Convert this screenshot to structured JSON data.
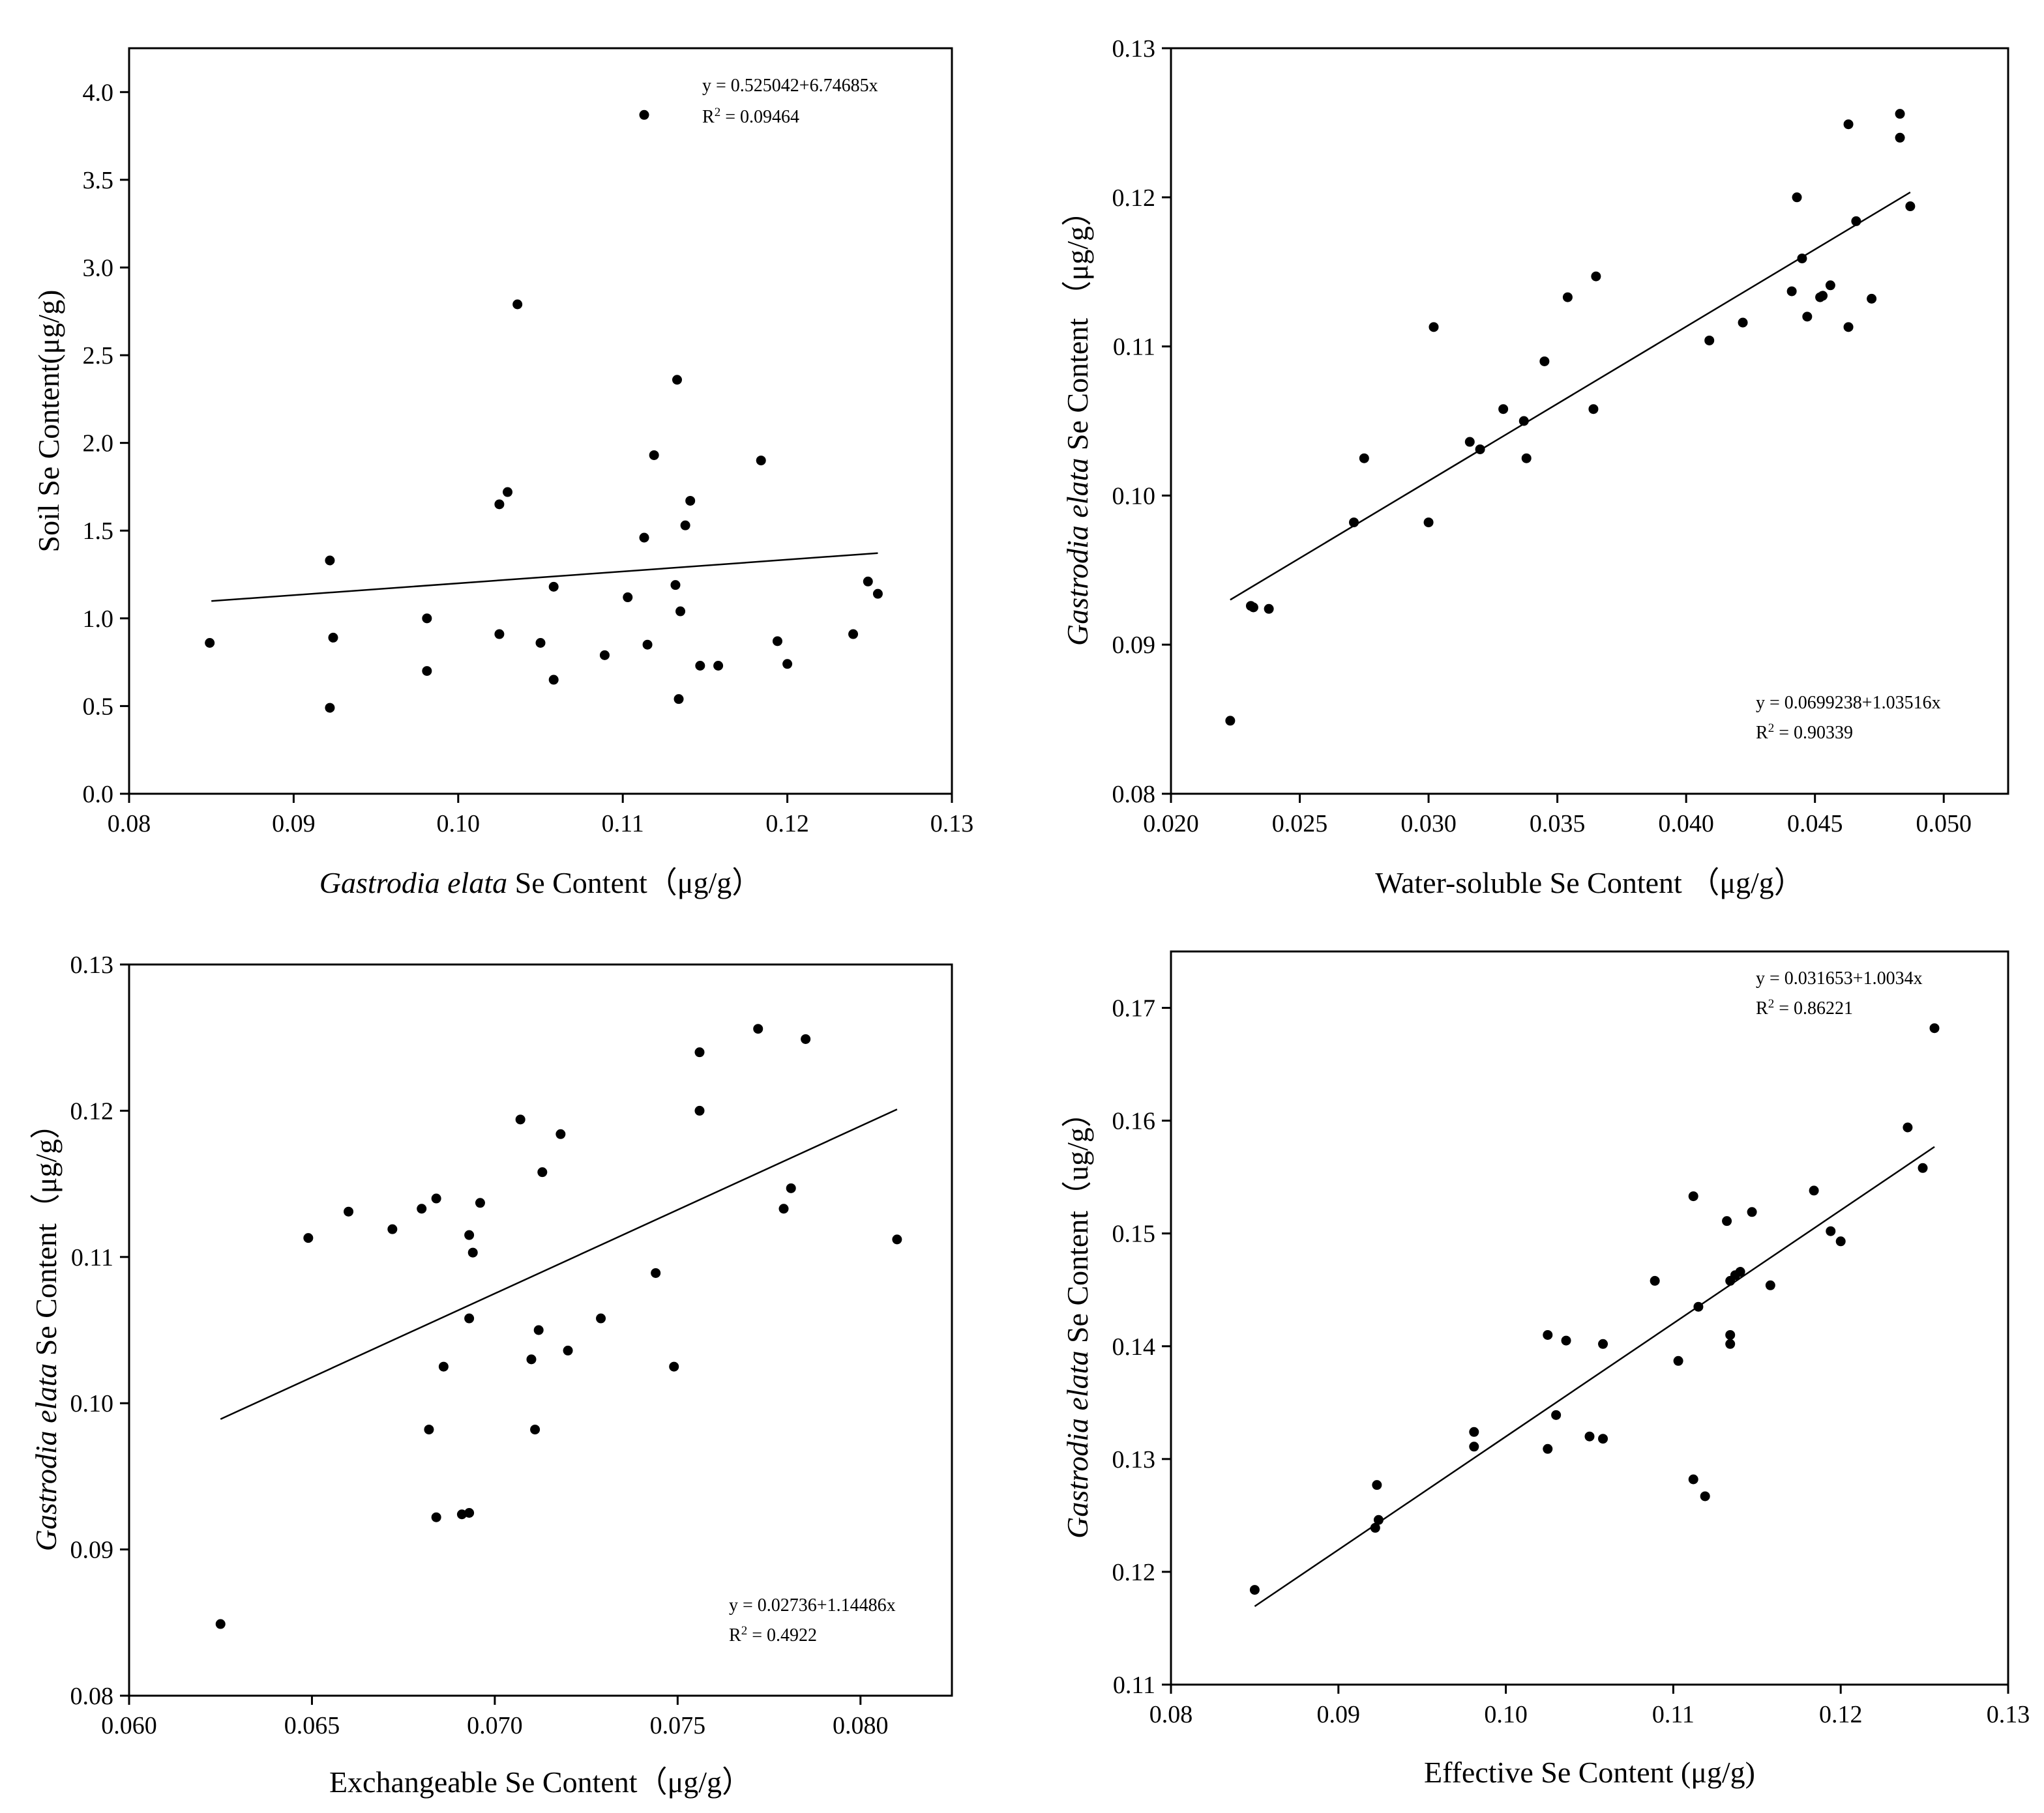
{
  "chart_data": [
    {
      "type": "scatter",
      "id": "soil-vs-ge",
      "title": "",
      "xlabel": {
        "italic": "Gastrodia elata",
        "rest": " Se Content（μg/g）"
      },
      "ylabel": "Soil Se Content(μg/g)",
      "xlim": [
        0.08,
        0.13
      ],
      "ylim": [
        0.0,
        4.25
      ],
      "xticks": [
        "0.08",
        "0.09",
        "0.10",
        "0.11",
        "0.12",
        "0.13"
      ],
      "yticks": [
        "0.0",
        "0.5",
        "1.0",
        "1.5",
        "2.0",
        "2.5",
        "3.0",
        "3.5",
        "4.0"
      ],
      "equation": "y = 0.525042+6.74685x",
      "r2_label": "R",
      "r2_value": " = 0.09464",
      "fit": {
        "intercept": 0.525042,
        "slope": 6.74685,
        "x_range": [
          0.085,
          0.1255
        ]
      },
      "points": [
        [
          0.0849,
          0.86
        ],
        [
          0.0922,
          1.33
        ],
        [
          0.0922,
          0.49
        ],
        [
          0.0924,
          0.89
        ],
        [
          0.0981,
          1.0
        ],
        [
          0.0981,
          0.7
        ],
        [
          0.1025,
          1.65
        ],
        [
          0.1025,
          0.91
        ],
        [
          0.103,
          1.72
        ],
        [
          0.1036,
          2.79
        ],
        [
          0.105,
          0.86
        ],
        [
          0.1058,
          1.18
        ],
        [
          0.1058,
          0.65
        ],
        [
          0.1089,
          0.79
        ],
        [
          0.1103,
          1.12
        ],
        [
          0.1113,
          3.87
        ],
        [
          0.1113,
          1.46
        ],
        [
          0.1115,
          0.85
        ],
        [
          0.1119,
          1.93
        ],
        [
          0.1132,
          1.19
        ],
        [
          0.1133,
          2.36
        ],
        [
          0.1134,
          0.54
        ],
        [
          0.1135,
          1.04
        ],
        [
          0.1138,
          1.53
        ],
        [
          0.1141,
          1.67
        ],
        [
          0.1147,
          0.73
        ],
        [
          0.1158,
          0.73
        ],
        [
          0.1184,
          1.9
        ],
        [
          0.1194,
          0.87
        ],
        [
          0.12,
          0.74
        ],
        [
          0.124,
          0.91
        ],
        [
          0.1249,
          1.21
        ],
        [
          0.1255,
          1.14
        ]
      ]
    },
    {
      "type": "scatter",
      "id": "ge-vs-water-soluble",
      "title": "",
      "xlabel": {
        "italic": "",
        "rest": "Water-soluble Se Content （μg/g）"
      },
      "ylabel": {
        "italic": "Gastrodia elata",
        "rest": " Se Content （μg/g）"
      },
      "xlim": [
        0.02,
        0.0525
      ],
      "ylim": [
        0.08,
        0.13
      ],
      "xticks": [
        "0.020",
        "0.025",
        "0.030",
        "0.035",
        "0.040",
        "0.045",
        "0.050"
      ],
      "yticks": [
        "0.08",
        "0.09",
        "0.10",
        "0.11",
        "0.12",
        "0.13"
      ],
      "equation": "y = 0.0699238+1.03516x",
      "r2_label": "R",
      "r2_value": " = 0.90339",
      "fit": {
        "intercept": 0.0699238,
        "slope": 1.03516,
        "x_range": [
          0.0223,
          0.0487
        ]
      },
      "points": [
        [
          0.0223,
          0.0849
        ],
        [
          0.0231,
          0.0926
        ],
        [
          0.0232,
          0.0925
        ],
        [
          0.0238,
          0.0924
        ],
        [
          0.0271,
          0.0982
        ],
        [
          0.0275,
          0.1025
        ],
        [
          0.03,
          0.0982
        ],
        [
          0.0302,
          0.1113
        ],
        [
          0.0316,
          0.1036
        ],
        [
          0.032,
          0.1031
        ],
        [
          0.0329,
          0.1058
        ],
        [
          0.0337,
          0.105
        ],
        [
          0.0338,
          0.1025
        ],
        [
          0.0345,
          0.109
        ],
        [
          0.0354,
          0.1133
        ],
        [
          0.0364,
          0.1058
        ],
        [
          0.0365,
          0.1147
        ],
        [
          0.0409,
          0.1104
        ],
        [
          0.0422,
          0.1116
        ],
        [
          0.0441,
          0.1137
        ],
        [
          0.0443,
          0.12
        ],
        [
          0.0445,
          0.1159
        ],
        [
          0.0447,
          0.112
        ],
        [
          0.0452,
          0.1133
        ],
        [
          0.0453,
          0.1134
        ],
        [
          0.0456,
          0.1141
        ],
        [
          0.0463,
          0.1249
        ],
        [
          0.0463,
          0.1113
        ],
        [
          0.0466,
          0.1184
        ],
        [
          0.0472,
          0.1132
        ],
        [
          0.0483,
          0.124
        ],
        [
          0.0483,
          0.1256
        ],
        [
          0.0487,
          0.1194
        ]
      ]
    },
    {
      "type": "scatter",
      "id": "ge-vs-exchangeable",
      "title": "",
      "xlabel": {
        "italic": "",
        "rest": "Exchangeable Se Content（μg/g）"
      },
      "ylabel": {
        "italic": "Gastrodia elata",
        "rest": " Se Content（μg/g）"
      },
      "xlim": [
        0.06,
        0.0825
      ],
      "ylim": [
        0.08,
        0.13
      ],
      "xticks": [
        "0.060",
        "0.065",
        "0.070",
        "0.075",
        "0.080"
      ],
      "yticks": [
        "0.08",
        "0.09",
        "0.10",
        "0.11",
        "0.12",
        "0.13"
      ],
      "equation": "y = 0.02736+1.14486x",
      "r2_label": "R",
      "r2_value": " = 0.4922",
      "fit": {
        "intercept": 0.02736,
        "slope": 1.14486,
        "x_range": [
          0.0625,
          0.081
        ]
      },
      "points": [
        [
          0.0625,
          0.0849
        ],
        [
          0.0649,
          0.1113
        ],
        [
          0.066,
          0.1131
        ],
        [
          0.0672,
          0.1119
        ],
        [
          0.068,
          0.1133
        ],
        [
          0.0682,
          0.0982
        ],
        [
          0.0684,
          0.114
        ],
        [
          0.0684,
          0.0922
        ],
        [
          0.0686,
          0.1025
        ],
        [
          0.0691,
          0.0924
        ],
        [
          0.0693,
          0.0925
        ],
        [
          0.0693,
          0.1115
        ],
        [
          0.0693,
          0.1058
        ],
        [
          0.0694,
          0.1103
        ],
        [
          0.0696,
          0.1137
        ],
        [
          0.0707,
          0.1194
        ],
        [
          0.071,
          0.103
        ],
        [
          0.0711,
          0.0982
        ],
        [
          0.0712,
          0.105
        ],
        [
          0.0713,
          0.1158
        ],
        [
          0.0718,
          0.1184
        ],
        [
          0.072,
          0.1036
        ],
        [
          0.0729,
          0.1058
        ],
        [
          0.0744,
          0.1089
        ],
        [
          0.0749,
          0.1025
        ],
        [
          0.0756,
          0.124
        ],
        [
          0.0756,
          0.12
        ],
        [
          0.0772,
          0.1256
        ],
        [
          0.0779,
          0.1133
        ],
        [
          0.0781,
          0.1147
        ],
        [
          0.0785,
          0.1249
        ],
        [
          0.081,
          0.1112
        ]
      ]
    },
    {
      "type": "scatter",
      "id": "ge-vs-effective",
      "title": "",
      "xlabel": {
        "italic": "",
        "rest": "Effective Se Content (μg/g)"
      },
      "ylabel": {
        "italic": "Gastrodia elata",
        "rest": " Se Content（ug/g）"
      },
      "xlim": [
        0.08,
        0.13
      ],
      "ylim": [
        0.11,
        0.175
      ],
      "xticks": [
        "0.08",
        "0.09",
        "0.10",
        "0.11",
        "0.12",
        "0.13"
      ],
      "yticks": [
        "0.11",
        "0.12",
        "0.13",
        "0.14",
        "0.15",
        "0.16",
        "0.17"
      ],
      "equation": "y = 0.031653+1.0034x",
      "r2_label": "R",
      "r2_value": " = 0.86221",
      "fit": {
        "intercept": 0.031653,
        "slope": 1.0034,
        "x_range": [
          0.085,
          0.1256
        ]
      },
      "points": [
        [
          0.085,
          0.1184
        ],
        [
          0.0922,
          0.1239
        ],
        [
          0.0923,
          0.1277
        ],
        [
          0.0924,
          0.1246
        ],
        [
          0.0981,
          0.1324
        ],
        [
          0.0981,
          0.1311
        ],
        [
          0.1025,
          0.141
        ],
        [
          0.1025,
          0.1309
        ],
        [
          0.103,
          0.1339
        ],
        [
          0.1036,
          0.1405
        ],
        [
          0.105,
          0.132
        ],
        [
          0.1058,
          0.1402
        ],
        [
          0.1058,
          0.1318
        ],
        [
          0.1089,
          0.1458
        ],
        [
          0.1103,
          0.1387
        ],
        [
          0.1112,
          0.1533
        ],
        [
          0.1112,
          0.1282
        ],
        [
          0.1115,
          0.1435
        ],
        [
          0.1119,
          0.1267
        ],
        [
          0.1132,
          0.1511
        ],
        [
          0.1134,
          0.1458
        ],
        [
          0.1134,
          0.141
        ],
        [
          0.1134,
          0.1402
        ],
        [
          0.1137,
          0.1463
        ],
        [
          0.114,
          0.1466
        ],
        [
          0.1147,
          0.1519
        ],
        [
          0.1158,
          0.1454
        ],
        [
          0.1184,
          0.1538
        ],
        [
          0.1194,
          0.1502
        ],
        [
          0.12,
          0.1493
        ],
        [
          0.124,
          0.1594
        ],
        [
          0.1249,
          0.1558
        ],
        [
          0.1256,
          0.1682
        ]
      ]
    }
  ]
}
